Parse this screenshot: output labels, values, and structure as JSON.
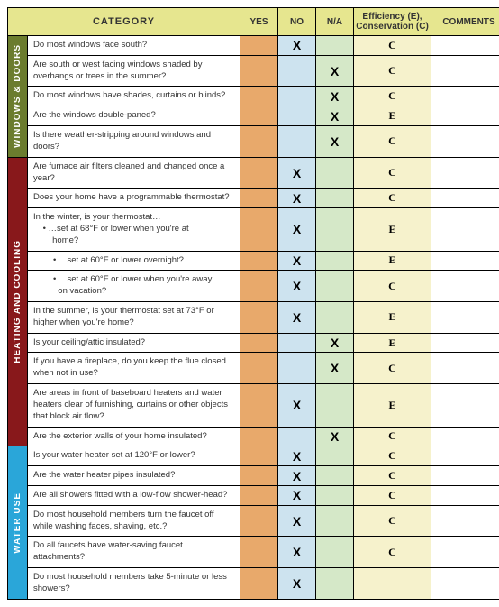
{
  "headers": {
    "category": "CATEGORY",
    "yes": "YES",
    "no": "NO",
    "na": "N/A",
    "eff": "Efficiency (E), Conservation (C)",
    "comments": "COMMENTS"
  },
  "sections": [
    {
      "name": "WINDOWS & DOORS",
      "color": "#6b7c2e",
      "rows": [
        {
          "q": "Do most windows face south?",
          "no": "X",
          "na": "",
          "eff": "C"
        },
        {
          "q": "Are south or west facing windows shaded by overhangs or trees in the summer?",
          "no": "",
          "na": "X",
          "eff": "C"
        },
        {
          "q": "Do most windows have shades, curtains or blinds?",
          "no": "",
          "na": "X",
          "eff": "C"
        },
        {
          "q": "Are the windows double-paned?",
          "no": "",
          "na": "X",
          "eff": "E"
        },
        {
          "q": "Is there weather-stripping around windows and doors?",
          "no": "",
          "na": "X",
          "eff": "C"
        }
      ]
    },
    {
      "name": "HEATING AND COOLING",
      "color": "#88181b",
      "rows": [
        {
          "q": "Are furnace air filters cleaned and changed once a year?",
          "no": "X",
          "na": "",
          "eff": "C"
        },
        {
          "q": "Does your home have a programmable thermostat?",
          "no": "X",
          "na": "",
          "eff": "C"
        },
        {
          "q": "In the winter, is your thermostat…\n    • …set at 68°F or lower when you're at\n        home?",
          "no": "X",
          "na": "",
          "eff": "E"
        },
        {
          "q": "• …set at 60°F or lower overnight?",
          "sub": true,
          "no": "X",
          "na": "",
          "eff": "E"
        },
        {
          "q": "• …set at 60°F or lower when you're away\n  on vacation?",
          "sub": true,
          "no": "X",
          "na": "",
          "eff": "C"
        },
        {
          "q": "In the summer, is your thermostat set at 73°F or higher when you're home?",
          "no": "X",
          "na": "",
          "eff": "E"
        },
        {
          "q": "Is your ceiling/attic insulated?",
          "no": "",
          "na": "X",
          "eff": "E"
        },
        {
          "q": "If you have a fireplace, do you keep the flue closed when not in use?",
          "no": "",
          "na": "X",
          "eff": "C"
        },
        {
          "q": "Are areas in front of baseboard heaters and water heaters clear of furnishing, curtains or other objects that block air flow?",
          "no": "X",
          "na": "",
          "eff": "E"
        },
        {
          "q": "Are the exterior walls of your home insulated?",
          "no": "",
          "na": "X",
          "eff": "C"
        }
      ]
    },
    {
      "name": "WATER USE",
      "color": "#2aa6d9",
      "rows": [
        {
          "q": "Is your water heater set at 120°F or lower?",
          "no": "X",
          "na": "",
          "eff": "C"
        },
        {
          "q": "Are the water heater pipes insulated?",
          "no": "X",
          "na": "",
          "eff": "C"
        },
        {
          "q": "Are all showers fitted with a low-flow shower-head?",
          "no": "X",
          "na": "",
          "eff": "C"
        },
        {
          "q": "Do most household members turn the faucet off while washing faces, shaving, etc.?",
          "no": "X",
          "na": "",
          "eff": "C"
        },
        {
          "q": "Do all faucets have water-saving faucet attachments?",
          "no": "X",
          "na": "",
          "eff": "C"
        },
        {
          "q": "Do most household members take 5-minute or less showers?",
          "no": "X",
          "na": "",
          "eff": ""
        }
      ]
    }
  ]
}
